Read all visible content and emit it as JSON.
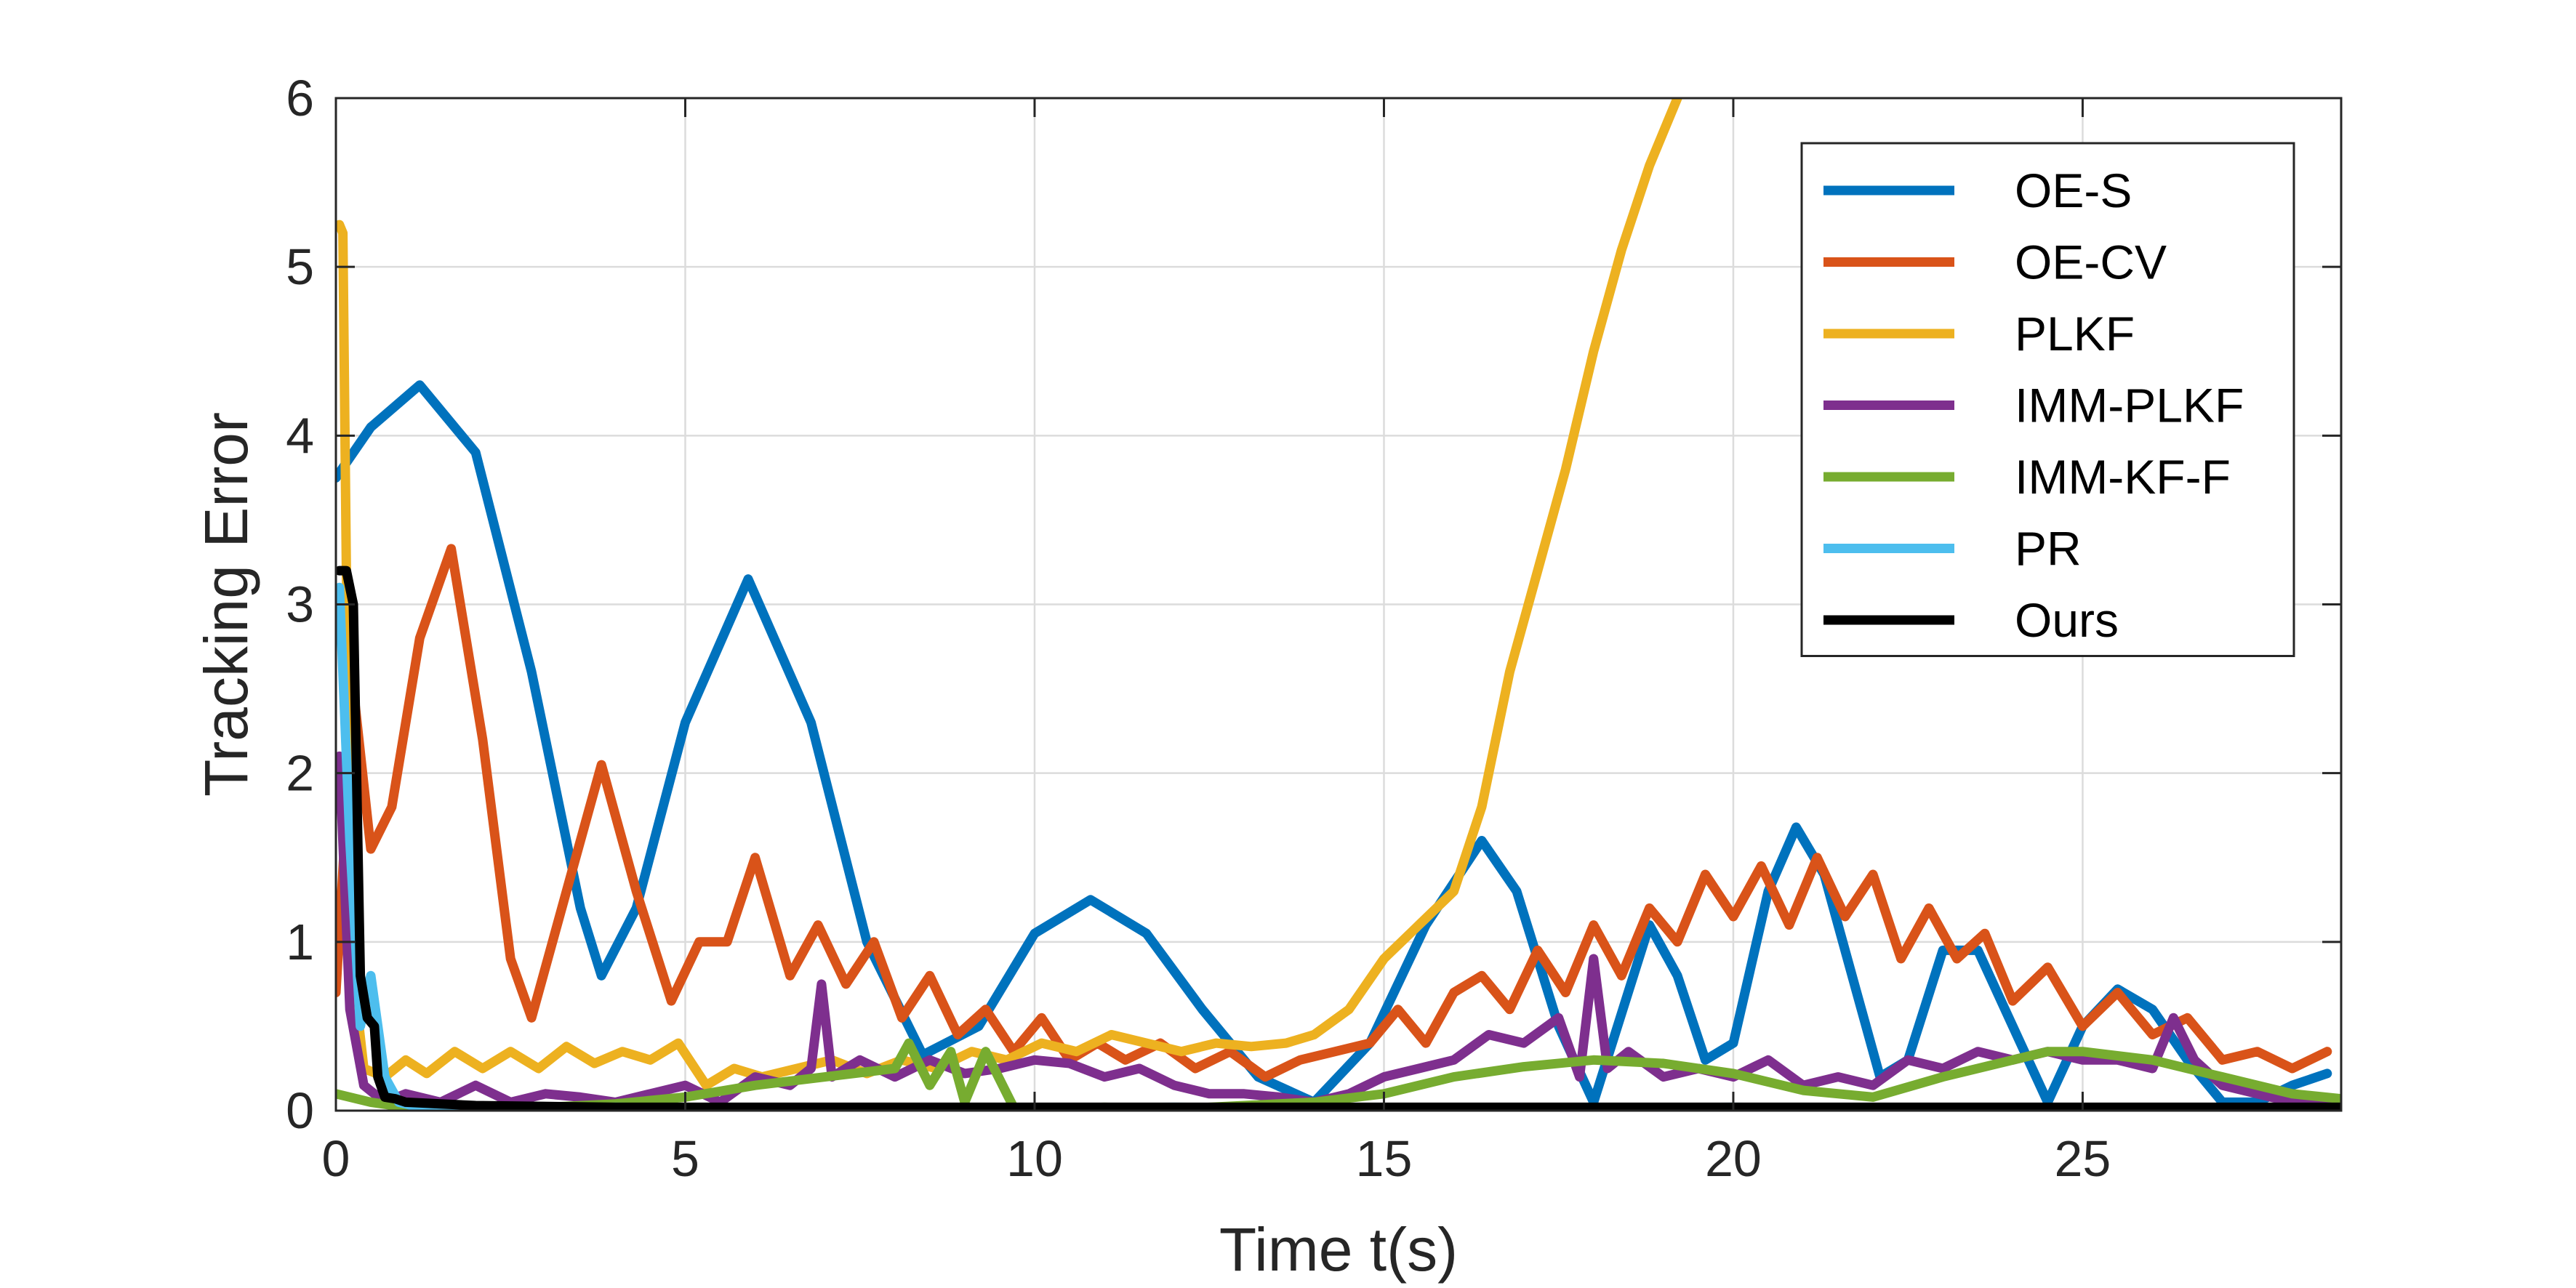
{
  "chart_data": {
    "type": "line",
    "title": "",
    "xlabel": "Time t(s)",
    "ylabel": "Tracking Error",
    "xlim": [
      0,
      28.7
    ],
    "ylim": [
      0,
      6
    ],
    "xticks": [
      0,
      5,
      10,
      15,
      20,
      25
    ],
    "yticks": [
      0,
      1,
      2,
      3,
      4,
      5,
      6
    ],
    "grid": true,
    "legend_position": "top-right",
    "series": [
      {
        "name": "OE-S",
        "color": "#0072BD",
        "x": [
          0,
          0.5,
          1.2,
          2,
          2.8,
          3.5,
          3.8,
          4.3,
          5,
          5.9,
          6.8,
          7.6,
          8.4,
          9.2,
          10,
          10.8,
          11.6,
          12.4,
          13.2,
          14,
          14.8,
          15.6,
          16.4,
          16.9,
          17.5,
          18,
          18.8,
          19.2,
          19.6,
          20,
          20.5,
          20.9,
          21.3,
          21.7,
          22.1,
          22.5,
          23.0,
          23.5,
          24.0,
          24.5,
          25.0,
          25.5,
          26.0,
          26.5,
          27.0,
          27.5,
          28.0,
          28.5
        ],
        "y": [
          3.75,
          4.05,
          4.3,
          3.9,
          2.6,
          1.2,
          0.8,
          1.2,
          2.3,
          3.15,
          2.3,
          1.0,
          0.33,
          0.5,
          1.05,
          1.25,
          1.05,
          0.6,
          0.2,
          0.05,
          0.4,
          1.1,
          1.6,
          1.3,
          0.5,
          0.05,
          1.1,
          0.8,
          0.3,
          0.4,
          1.3,
          1.68,
          1.4,
          0.8,
          0.2,
          0.3,
          0.95,
          0.95,
          0.5,
          0.05,
          0.5,
          0.72,
          0.6,
          0.3,
          0.05,
          0.05,
          0.15,
          0.22
        ]
      },
      {
        "name": "OE-CV",
        "color": "#D95319",
        "x": [
          0,
          0.25,
          0.5,
          0.8,
          1.2,
          1.65,
          2.1,
          2.5,
          2.8,
          3.3,
          3.8,
          4.3,
          4.8,
          5.2,
          5.6,
          6.0,
          6.5,
          6.9,
          7.3,
          7.7,
          8.1,
          8.5,
          8.9,
          9.3,
          9.7,
          10.1,
          10.5,
          10.9,
          11.3,
          11.8,
          12.3,
          12.8,
          13.3,
          13.8,
          14.3,
          14.8,
          15.2,
          15.6,
          16.0,
          16.4,
          16.8,
          17.2,
          17.6,
          18.0,
          18.4,
          18.8,
          19.2,
          19.6,
          20.0,
          20.4,
          20.8,
          21.2,
          21.6,
          22.0,
          22.4,
          22.8,
          23.2,
          23.6,
          24.0,
          24.5,
          25.0,
          25.5,
          26.0,
          26.5,
          27.0,
          27.5,
          28.0,
          28.5
        ],
        "y": [
          0.7,
          2.5,
          1.55,
          1.8,
          2.8,
          3.33,
          2.2,
          0.9,
          0.55,
          1.3,
          2.05,
          1.3,
          0.65,
          1.0,
          1.0,
          1.5,
          0.8,
          1.1,
          0.75,
          1.0,
          0.55,
          0.8,
          0.45,
          0.6,
          0.35,
          0.55,
          0.3,
          0.4,
          0.3,
          0.4,
          0.25,
          0.35,
          0.2,
          0.3,
          0.35,
          0.4,
          0.6,
          0.4,
          0.7,
          0.8,
          0.6,
          0.95,
          0.7,
          1.1,
          0.8,
          1.2,
          1.0,
          1.4,
          1.15,
          1.45,
          1.1,
          1.5,
          1.15,
          1.4,
          0.9,
          1.2,
          0.9,
          1.05,
          0.65,
          0.85,
          0.5,
          0.7,
          0.45,
          0.55,
          0.3,
          0.35,
          0.25,
          0.35
        ]
      },
      {
        "name": "PLKF",
        "color": "#EDB120",
        "x": [
          0.05,
          0.1,
          0.15,
          0.25,
          0.4,
          0.7,
          1.0,
          1.3,
          1.7,
          2.1,
          2.5,
          2.9,
          3.3,
          3.7,
          4.1,
          4.5,
          4.9,
          5.3,
          5.7,
          6.1,
          6.6,
          7.1,
          7.6,
          8.1,
          8.6,
          9.1,
          9.6,
          10.1,
          10.6,
          11.1,
          11.6,
          12.1,
          12.6,
          13.1,
          13.6,
          14.0,
          14.5,
          15.0,
          15.5,
          16.0,
          16.4,
          16.8,
          17.2,
          17.6,
          18.0,
          18.4,
          18.8,
          19.2
        ],
        "y": [
          5.25,
          5.2,
          3.2,
          0.8,
          0.25,
          0.2,
          0.3,
          0.22,
          0.35,
          0.25,
          0.35,
          0.25,
          0.38,
          0.28,
          0.35,
          0.3,
          0.4,
          0.15,
          0.25,
          0.2,
          0.25,
          0.3,
          0.22,
          0.3,
          0.25,
          0.35,
          0.3,
          0.4,
          0.35,
          0.45,
          0.4,
          0.35,
          0.4,
          0.38,
          0.4,
          0.45,
          0.6,
          0.9,
          1.1,
          1.3,
          1.8,
          2.6,
          3.2,
          3.8,
          4.5,
          5.1,
          5.6,
          6.0
        ]
      },
      {
        "name": "IMM-PLKF",
        "color": "#7E2F8E",
        "x": [
          0.05,
          0.2,
          0.4,
          0.7,
          1.0,
          1.5,
          2.0,
          2.5,
          3.0,
          3.5,
          4.0,
          4.5,
          5.0,
          5.5,
          6.0,
          6.5,
          6.8,
          6.95,
          7.1,
          7.5,
          8.0,
          8.5,
          9.0,
          9.5,
          10.0,
          10.5,
          11.0,
          11.5,
          12.0,
          12.5,
          13.0,
          13.5,
          14.0,
          14.5,
          15.0,
          15.5,
          16.0,
          16.5,
          17.0,
          17.5,
          17.8,
          18.0,
          18.2,
          18.5,
          19.0,
          19.5,
          20.0,
          20.5,
          21.0,
          21.5,
          22.0,
          22.5,
          23.0,
          23.5,
          24.0,
          24.5,
          25.0,
          25.5,
          26.0,
          26.3,
          26.6,
          27.0,
          27.5,
          28.0,
          28.5
        ],
        "y": [
          2.1,
          0.6,
          0.15,
          0.05,
          0.1,
          0.05,
          0.15,
          0.05,
          0.1,
          0.08,
          0.05,
          0.1,
          0.15,
          0.05,
          0.2,
          0.15,
          0.25,
          0.75,
          0.2,
          0.3,
          0.2,
          0.3,
          0.22,
          0.25,
          0.3,
          0.28,
          0.2,
          0.25,
          0.15,
          0.1,
          0.1,
          0.08,
          0.05,
          0.1,
          0.2,
          0.25,
          0.3,
          0.45,
          0.4,
          0.55,
          0.2,
          0.9,
          0.25,
          0.35,
          0.2,
          0.25,
          0.2,
          0.3,
          0.15,
          0.2,
          0.15,
          0.3,
          0.25,
          0.35,
          0.3,
          0.35,
          0.3,
          0.3,
          0.25,
          0.55,
          0.3,
          0.15,
          0.1,
          0.05,
          0.05
        ]
      },
      {
        "name": "IMM-KF-F",
        "color": "#77AC30",
        "x": [
          0,
          0.5,
          1.0,
          2.0,
          3.0,
          4.0,
          5.0,
          6.0,
          7.0,
          8.0,
          8.2,
          8.5,
          8.8,
          9.0,
          9.3,
          9.7,
          10.0,
          11.0,
          12.0,
          13.0,
          14.0,
          15.0,
          16.0,
          17.0,
          18.0,
          19.0,
          20.0,
          21.0,
          22.0,
          23.0,
          24.0,
          24.5,
          25.0,
          26.0,
          27.0,
          28.0,
          28.7
        ],
        "y": [
          0.1,
          0.05,
          0.02,
          0.01,
          0.02,
          0.04,
          0.08,
          0.15,
          0.2,
          0.25,
          0.4,
          0.15,
          0.35,
          0.05,
          0.35,
          0.02,
          0.01,
          0.02,
          0.01,
          0.03,
          0.05,
          0.1,
          0.2,
          0.26,
          0.3,
          0.28,
          0.22,
          0.12,
          0.08,
          0.2,
          0.3,
          0.35,
          0.35,
          0.3,
          0.2,
          0.1,
          0.07
        ]
      },
      {
        "name": "PR",
        "color": "#4DBEEE",
        "x": [
          0.05,
          0.2,
          0.35,
          0.5,
          0.7,
          0.9,
          1.2,
          2.0,
          4.0,
          8.0,
          12.0,
          16.0,
          20.0,
          24.0,
          28.7
        ],
        "y": [
          3.1,
          1.6,
          0.5,
          0.8,
          0.2,
          0.05,
          0.02,
          0.01,
          0.02,
          0.01,
          0.02,
          0.01,
          0.02,
          0.01,
          0.01
        ]
      },
      {
        "name": "Ours",
        "color": "#000000",
        "x": [
          0.05,
          0.15,
          0.25,
          0.35,
          0.45,
          0.55,
          0.6,
          0.7,
          0.85,
          1.0,
          1.5,
          2.0,
          4.0,
          8.0,
          12.0,
          16.0,
          20.0,
          24.0,
          28.7
        ],
        "y": [
          3.2,
          3.2,
          3.0,
          0.8,
          0.55,
          0.5,
          0.2,
          0.08,
          0.07,
          0.05,
          0.04,
          0.03,
          0.02,
          0.02,
          0.02,
          0.02,
          0.02,
          0.02,
          0.02
        ]
      }
    ]
  }
}
